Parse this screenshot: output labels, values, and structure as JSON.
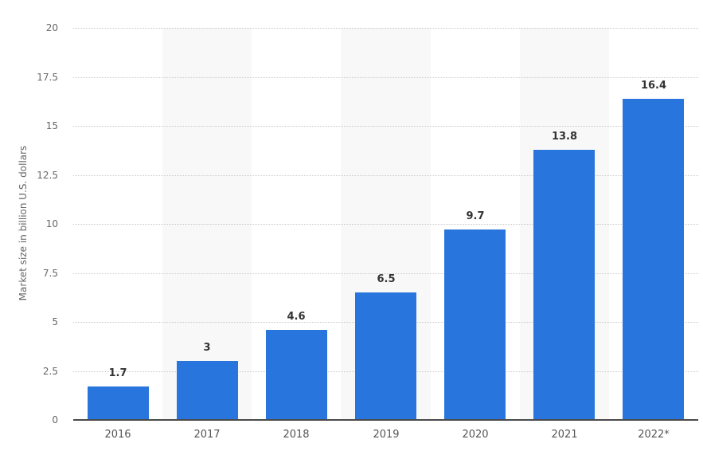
{
  "chart_data": {
    "type": "bar",
    "title": "",
    "xlabel": "",
    "ylabel": "Market size in billion U.S. dollars",
    "categories": [
      "2016",
      "2017",
      "2018",
      "2019",
      "2020",
      "2021",
      "2022*"
    ],
    "values": [
      1.7,
      3,
      4.6,
      6.5,
      9.7,
      13.8,
      16.4
    ],
    "value_labels": [
      "1.7",
      "3",
      "4.6",
      "6.5",
      "9.7",
      "13.8",
      "16.4"
    ],
    "ylim": [
      0,
      20
    ],
    "yticks": [
      0,
      2.5,
      5,
      7.5,
      10,
      12.5,
      15,
      17.5,
      20
    ],
    "ytick_labels": [
      "0",
      "2.5",
      "5",
      "7.5",
      "10",
      "12.5",
      "15",
      "17.5",
      "20"
    ],
    "grid": true,
    "legend": null,
    "colors": {
      "bar": "#2876DD",
      "band": "#F8F8F8",
      "gridline": "#C9C9C9",
      "baseline": "#4A4A4A"
    }
  }
}
